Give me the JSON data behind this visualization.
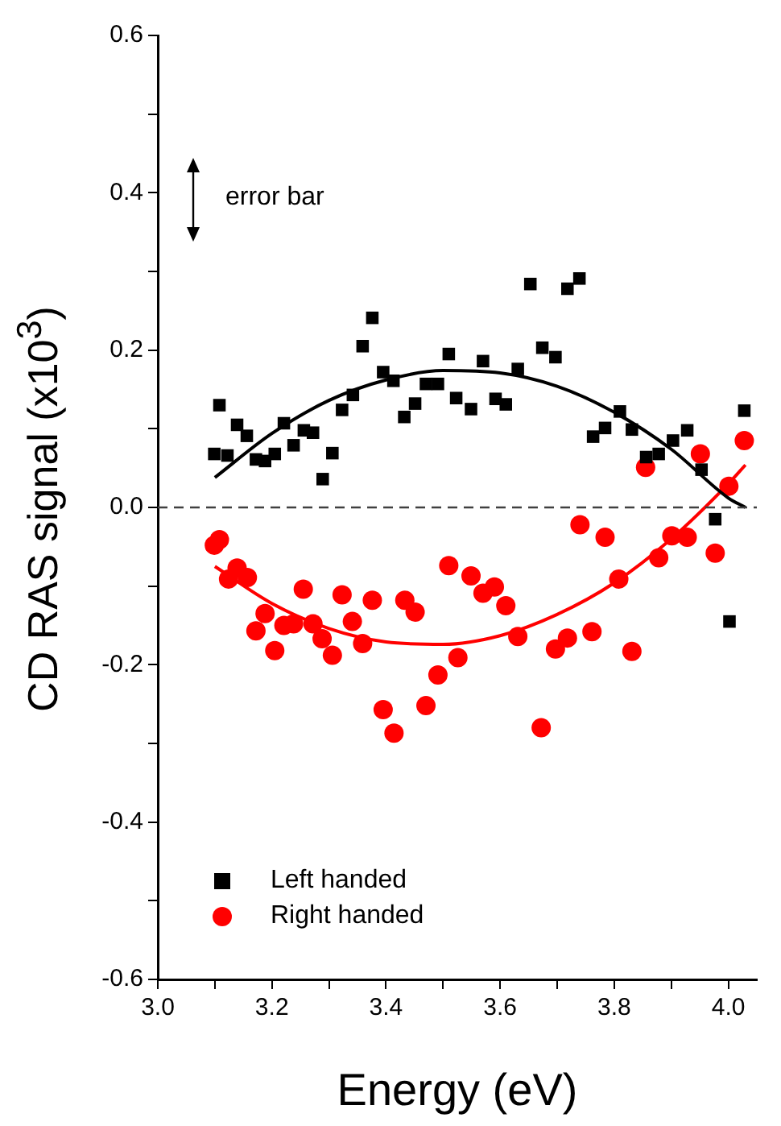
{
  "chart_data": {
    "type": "scatter",
    "xlabel": "Energy (eV)",
    "ylabel": "CD RAS signal (x10$^{3}$)",
    "xlim": [
      3.0,
      4.05
    ],
    "ylim": [
      -0.6,
      0.6
    ],
    "xticks": [
      {
        "value": 3.0,
        "label": "3.0"
      },
      {
        "value": 3.1,
        "label": null
      },
      3.2,
      {
        "value": 3.3,
        "label": null
      },
      3.4,
      {
        "value": 3.5,
        "label": null
      },
      3.6,
      {
        "value": 3.7,
        "label": null
      },
      3.8,
      {
        "value": 3.9,
        "label": null
      },
      {
        "value": 4.0,
        "label": "4.0"
      }
    ],
    "yticks": [
      -0.6,
      {
        "value": -0.5,
        "label": null
      },
      -0.4,
      {
        "value": -0.3,
        "label": null
      },
      -0.2,
      {
        "value": -0.1,
        "label": null
      },
      {
        "value": 0,
        "label": "0.0"
      },
      {
        "value": 0.1,
        "label": null
      },
      0.2,
      {
        "value": 0.3,
        "label": null
      },
      0.4,
      {
        "value": 0.5,
        "label": null
      },
      0.6
    ],
    "grid": false,
    "legend": "bottom left",
    "annotations": [
      "error bar"
    ],
    "ref_lines": [
      {
        "axis": "y",
        "value": 0,
        "color": "#404040",
        "line_style": "dashed"
      }
    ],
    "series": [
      {
        "name": "Left handed",
        "marker": "square",
        "color": "#000000",
        "x": [
          3.099,
          3.108,
          3.122,
          3.139,
          3.156,
          3.172,
          3.188,
          3.205,
          3.221,
          3.238,
          3.256,
          3.272,
          3.289,
          3.306,
          3.323,
          3.342,
          3.359,
          3.376,
          3.395,
          3.413,
          3.432,
          3.451,
          3.47,
          3.491,
          3.51,
          3.523,
          3.549,
          3.57,
          3.592,
          3.61,
          3.631,
          3.653,
          3.674,
          3.697,
          3.718,
          3.739,
          3.763,
          3.784,
          3.81,
          3.831,
          3.856,
          3.878,
          3.903,
          3.928,
          3.953,
          3.977,
          4.002,
          4.028
        ],
        "values": [
          0.068,
          0.13,
          0.066,
          0.105,
          0.091,
          0.061,
          0.059,
          0.068,
          0.107,
          0.079,
          0.098,
          0.095,
          0.036,
          0.069,
          0.124,
          0.143,
          0.205,
          0.241,
          0.172,
          0.161,
          0.115,
          0.132,
          0.157,
          0.157,
          0.195,
          0.139,
          0.125,
          0.186,
          0.138,
          0.131,
          0.176,
          0.284,
          0.203,
          0.191,
          0.278,
          0.291,
          0.09,
          0.101,
          0.122,
          0.099,
          0.064,
          0.068,
          0.085,
          0.098,
          0.048,
          -0.015,
          -0.145,
          0.123
        ]
      },
      {
        "name": "Right handed",
        "marker": "circle",
        "color": "#ff0000",
        "x": [
          3.099,
          3.108,
          3.124,
          3.139,
          3.157,
          3.172,
          3.188,
          3.205,
          3.221,
          3.238,
          3.255,
          3.272,
          3.288,
          3.306,
          3.323,
          3.341,
          3.359,
          3.376,
          3.395,
          3.414,
          3.433,
          3.451,
          3.47,
          3.491,
          3.51,
          3.526,
          3.549,
          3.57,
          3.59,
          3.61,
          3.631,
          3.672,
          3.697,
          3.718,
          3.74,
          3.761,
          3.784,
          3.808,
          3.831,
          3.855,
          3.878,
          3.901,
          3.928,
          3.951,
          3.977,
          4.001,
          4.028
        ],
        "values": [
          -0.048,
          -0.041,
          -0.091,
          -0.077,
          -0.089,
          -0.157,
          -0.135,
          -0.182,
          -0.15,
          -0.148,
          -0.104,
          -0.148,
          -0.167,
          -0.188,
          -0.111,
          -0.145,
          -0.173,
          -0.118,
          -0.257,
          -0.287,
          -0.118,
          -0.133,
          -0.252,
          -0.213,
          -0.074,
          -0.191,
          -0.087,
          -0.109,
          -0.101,
          -0.125,
          -0.164,
          -0.28,
          -0.18,
          -0.166,
          -0.022,
          -0.158,
          -0.038,
          -0.091,
          -0.183,
          0.051,
          -0.064,
          -0.036,
          -0.038,
          0.068,
          -0.058,
          0.027,
          0.085
        ]
      },
      {
        "type": "line",
        "marker": "none",
        "color": "#000000",
        "x": [
          3.1,
          3.2,
          3.3,
          3.4,
          3.5,
          3.6,
          3.7,
          3.8,
          3.9,
          4.0,
          4.03
        ],
        "values": [
          0.038,
          0.094,
          0.136,
          0.162,
          0.174,
          0.171,
          0.154,
          0.121,
          0.074,
          0.012,
          0.0
        ]
      },
      {
        "type": "line",
        "marker": "none",
        "color": "#ff0000",
        "x": [
          3.1,
          3.2,
          3.3,
          3.4,
          3.5,
          3.6,
          3.7,
          3.8,
          3.9,
          4.0,
          4.03
        ],
        "values": [
          -0.075,
          -0.122,
          -0.154,
          -0.171,
          -0.174,
          -0.163,
          -0.136,
          -0.096,
          -0.04,
          0.03,
          0.054
        ]
      }
    ]
  }
}
